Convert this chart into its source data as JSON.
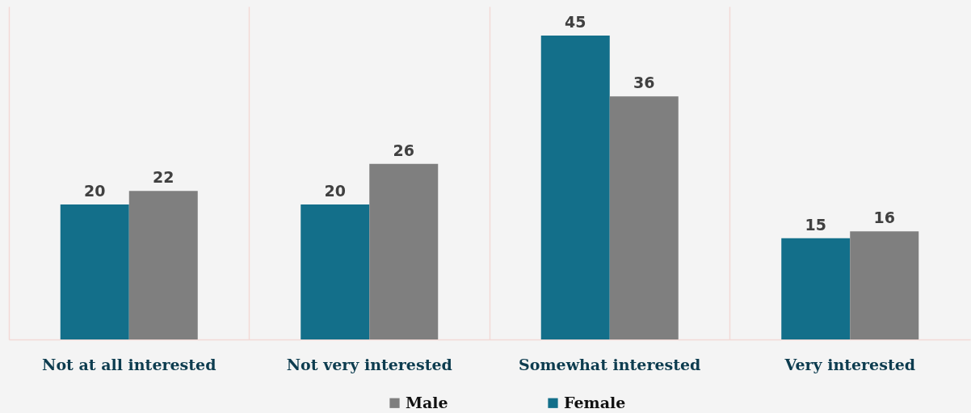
{
  "chart_data": {
    "type": "bar",
    "categories": [
      "Not at all interested",
      "Not very interested",
      "Somewhat interested",
      "Very interested"
    ],
    "series": [
      {
        "name": "Female",
        "color": "#136f8a",
        "values": [
          20,
          20,
          45,
          15
        ]
      },
      {
        "name": "Male",
        "color": "#7f7f7f",
        "values": [
          22,
          26,
          36,
          16
        ]
      }
    ],
    "data_labels": true,
    "legend": "bottom",
    "grid": "x",
    "tick_labels": "x"
  }
}
